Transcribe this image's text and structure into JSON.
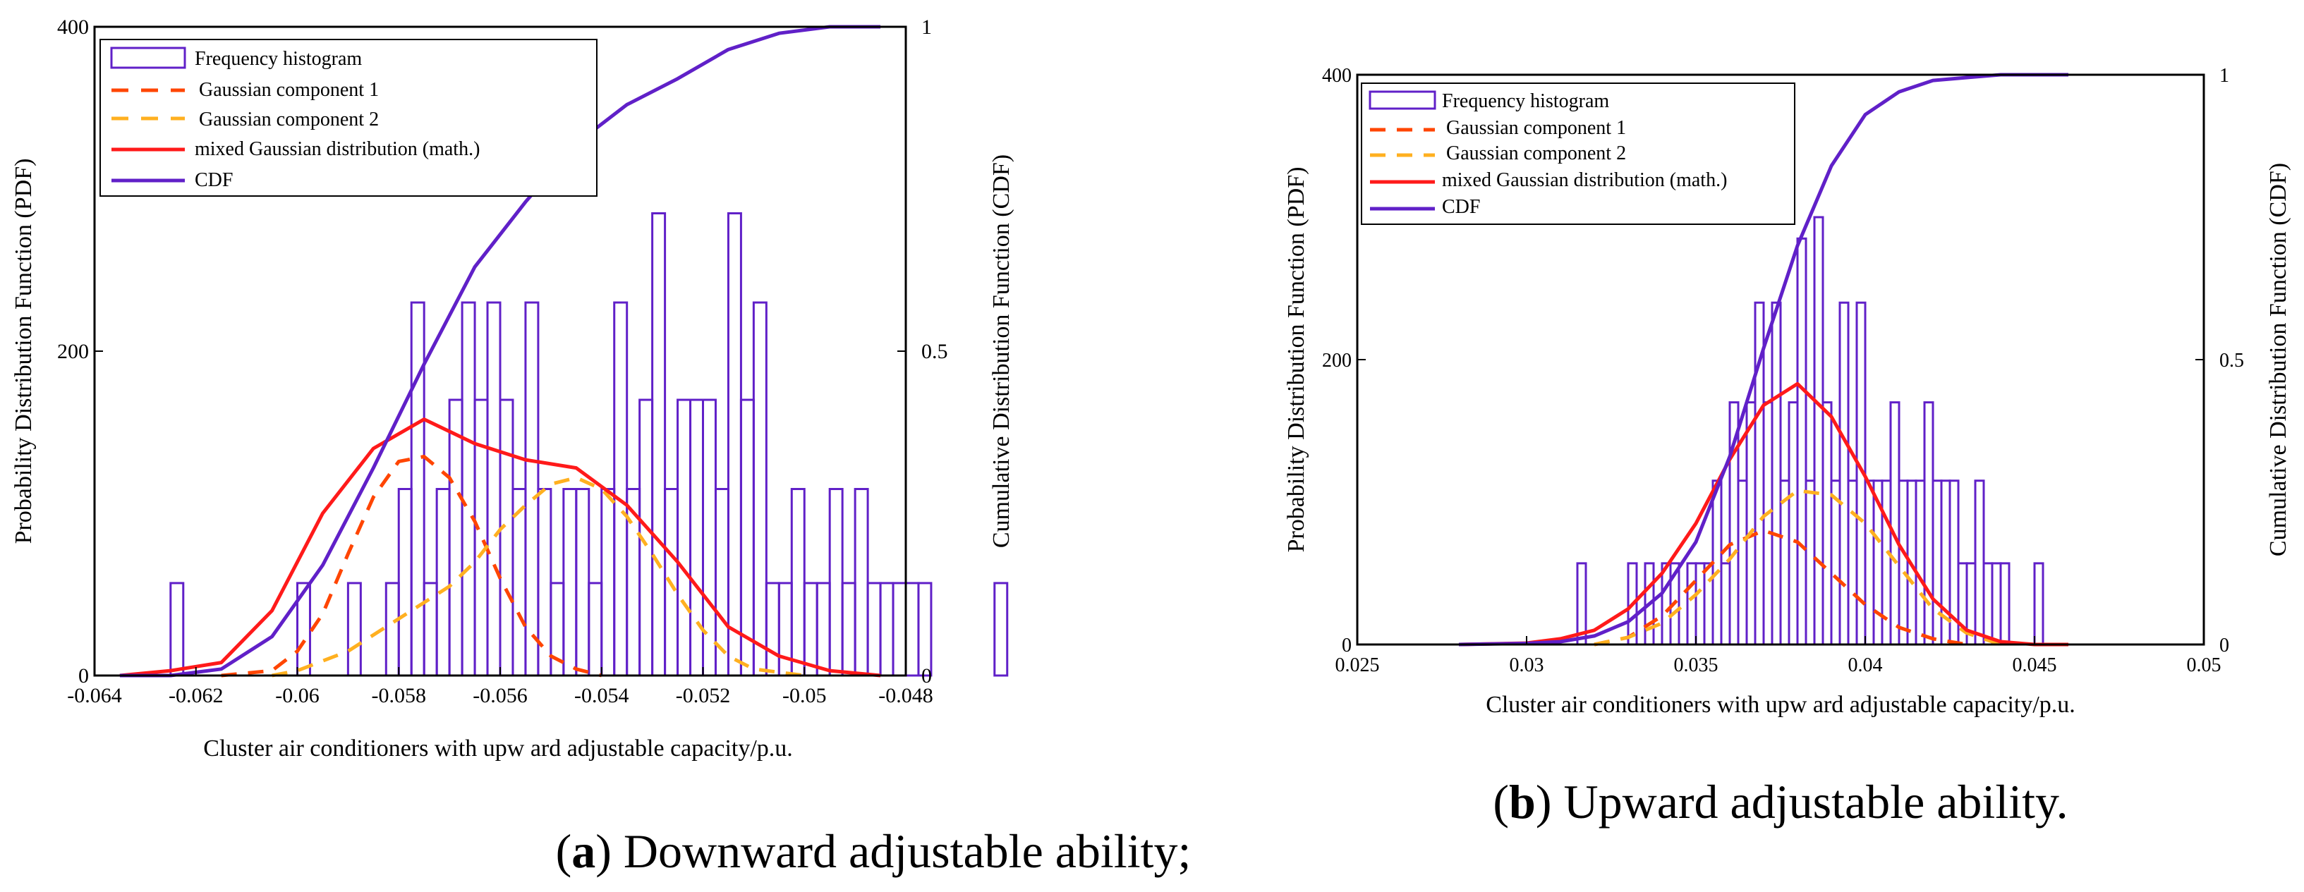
{
  "panels": [
    {
      "id": "a",
      "caption_letter": "a",
      "caption_text": ") Downward adjustable ability;",
      "chart_data": {
        "type": "histogram+line",
        "xlabel": "Cluster air conditioners with upw ard adjustable capacity/p.u.",
        "ylabel_left": "Probability Distribution Function (PDF)",
        "ylabel_right": "Cumulative Distribution Function (CDF)",
        "xlim": [
          -0.064,
          -0.048
        ],
        "ylim_left": [
          0,
          400
        ],
        "ylim_right": [
          0,
          1
        ],
        "xticks": [
          "-0.064",
          "-0.062",
          "-0.06",
          "-0.058",
          "-0.056",
          "-0.054",
          "-0.052",
          "-0.05",
          "-0.048"
        ],
        "xtick_values": [
          -0.064,
          -0.062,
          -0.06,
          -0.058,
          -0.056,
          -0.054,
          -0.052,
          -0.05,
          -0.048
        ],
        "yticks_left": [
          "0",
          "200",
          "400"
        ],
        "ytick_left_values": [
          0,
          200,
          400
        ],
        "yticks_right": [
          "0",
          "0.5",
          "1"
        ],
        "ytick_right_values": [
          0,
          0.5,
          1
        ],
        "legend": [
          "Frequency histogram",
          "Gaussian component 1",
          "Gaussian component 2",
          "mixed Gaussian distribution (math.)",
          "CDF"
        ],
        "histogram": {
          "bin_start": -0.0625,
          "bin_width": 0.00025,
          "counts": [
            57,
            0,
            0,
            0,
            0,
            0,
            0,
            0,
            0,
            0,
            57,
            0,
            0,
            0,
            57,
            0,
            0,
            57,
            115,
            230,
            57,
            115,
            170,
            230,
            170,
            230,
            170,
            115,
            230,
            115,
            57,
            115,
            115,
            57,
            115,
            230,
            115,
            170,
            285,
            115,
            170,
            170,
            170,
            115,
            285,
            170,
            230,
            57,
            57,
            115,
            57,
            57,
            115,
            57,
            115,
            57,
            57,
            57,
            57,
            57,
            0,
            0,
            0,
            0,
            0,
            57
          ]
        },
        "series": [
          {
            "name": "Gaussian component 1",
            "axis": "left",
            "color": "#ff4500",
            "dash": true,
            "x": [
              -0.0615,
              -0.0605,
              -0.06,
              -0.0595,
              -0.059,
              -0.0585,
              -0.058,
              -0.0575,
              -0.057,
              -0.0565,
              -0.056,
              -0.0555,
              -0.055,
              -0.0545,
              -0.054
            ],
            "y": [
              0,
              3,
              15,
              38,
              75,
              110,
              132,
              135,
              122,
              95,
              60,
              30,
              12,
              4,
              0
            ]
          },
          {
            "name": "Gaussian component 2",
            "axis": "left",
            "color": "#ffb020",
            "dash": true,
            "x": [
              -0.0605,
              -0.06,
              -0.059,
              -0.058,
              -0.057,
              -0.0565,
              -0.056,
              -0.0555,
              -0.055,
              -0.0545,
              -0.054,
              -0.0535,
              -0.053,
              -0.0525,
              -0.052,
              -0.0515,
              -0.051,
              -0.05
            ],
            "y": [
              0,
              3,
              15,
              35,
              55,
              70,
              90,
              105,
              118,
              122,
              115,
              98,
              75,
              50,
              28,
              12,
              4,
              0
            ]
          },
          {
            "name": "mixed Gaussian distribution (math.)",
            "axis": "left",
            "color": "#ff1a1a",
            "dash": false,
            "x": [
              -0.0635,
              -0.0625,
              -0.0615,
              -0.0605,
              -0.0595,
              -0.0585,
              -0.0575,
              -0.0565,
              -0.0555,
              -0.0545,
              -0.0535,
              -0.0525,
              -0.0515,
              -0.0505,
              -0.0495,
              -0.0485
            ],
            "y": [
              0,
              3,
              8,
              40,
              100,
              140,
              158,
              143,
              133,
              128,
              105,
              70,
              30,
              12,
              3,
              0
            ]
          },
          {
            "name": "CDF",
            "axis": "right",
            "color": "#6020c8",
            "dash": false,
            "x": [
              -0.0635,
              -0.0625,
              -0.0615,
              -0.0605,
              -0.0595,
              -0.0585,
              -0.0575,
              -0.0565,
              -0.0555,
              -0.0545,
              -0.0535,
              -0.0525,
              -0.0515,
              -0.0505,
              -0.0495,
              -0.0485
            ],
            "y": [
              0,
              0,
              0.01,
              0.06,
              0.17,
              0.32,
              0.48,
              0.63,
              0.73,
              0.82,
              0.88,
              0.92,
              0.965,
              0.99,
              1,
              1
            ]
          }
        ]
      }
    },
    {
      "id": "b",
      "caption_letter": "b",
      "caption_text": ") Upward adjustable ability.",
      "chart_data": {
        "type": "histogram+line",
        "xlabel": "Cluster air conditioners with upw ard adjustable capacity/p.u.",
        "ylabel_left": "Probability Distribution Function (PDF)",
        "ylabel_right": "Cumulative Distribution Function (CDF)",
        "xlim": [
          0.025,
          0.05
        ],
        "ylim_left": [
          0,
          400
        ],
        "ylim_right": [
          0,
          1
        ],
        "xticks": [
          "0.025",
          "0.03",
          "0.035",
          "0.04",
          "0.045",
          "0.05"
        ],
        "xtick_values": [
          0.025,
          0.03,
          0.035,
          0.04,
          0.045,
          0.05
        ],
        "yticks_left": [
          "0",
          "200",
          "400"
        ],
        "ytick_left_values": [
          0,
          200,
          400
        ],
        "yticks_right": [
          "0",
          "0.5",
          "1"
        ],
        "ytick_right_values": [
          0,
          0.5,
          1
        ],
        "legend": [
          "Frequency histogram",
          "Gaussian component 1",
          "Gaussian component 2",
          "mixed Gaussian distribution (math.)",
          "CDF"
        ],
        "histogram": {
          "bin_start": 0.0315,
          "bin_width": 0.00025,
          "counts": [
            57,
            0,
            0,
            0,
            0,
            0,
            57,
            0,
            57,
            0,
            57,
            57,
            0,
            57,
            57,
            57,
            115,
            57,
            170,
            115,
            170,
            240,
            170,
            240,
            115,
            170,
            285,
            115,
            300,
            170,
            115,
            240,
            115,
            240,
            115,
            115,
            115,
            170,
            115,
            115,
            115,
            170,
            115,
            115,
            115,
            57,
            57,
            115,
            57,
            57,
            57,
            0,
            0,
            0,
            57
          ]
        },
        "series": [
          {
            "name": "Gaussian component 1",
            "axis": "left",
            "color": "#ff4500",
            "dash": true,
            "x": [
              0.032,
              0.033,
              0.034,
              0.035,
              0.036,
              0.037,
              0.038,
              0.039,
              0.04,
              0.041,
              0.042,
              0.043
            ],
            "y": [
              0,
              5,
              20,
              45,
              70,
              80,
              72,
              50,
              28,
              12,
              4,
              0
            ]
          },
          {
            "name": "Gaussian component 2",
            "axis": "left",
            "color": "#ffb020",
            "dash": true,
            "x": [
              0.032,
              0.033,
              0.034,
              0.035,
              0.036,
              0.037,
              0.038,
              0.039,
              0.04,
              0.041,
              0.042,
              0.043,
              0.044
            ],
            "y": [
              0,
              5,
              15,
              35,
              60,
              90,
              108,
              105,
              85,
              55,
              25,
              8,
              0
            ]
          },
          {
            "name": "mixed Gaussian distribution (math.)",
            "axis": "left",
            "color": "#ff1a1a",
            "dash": false,
            "x": [
              0.028,
              0.03,
              0.031,
              0.032,
              0.033,
              0.034,
              0.035,
              0.036,
              0.037,
              0.038,
              0.039,
              0.04,
              0.041,
              0.042,
              0.043,
              0.044,
              0.045,
              0.046
            ],
            "y": [
              0,
              1,
              4,
              10,
              25,
              50,
              85,
              130,
              168,
              183,
              160,
              118,
              70,
              32,
              10,
              2,
              0,
              0
            ]
          },
          {
            "name": "CDF",
            "axis": "right",
            "color": "#6020c8",
            "dash": false,
            "x": [
              0.028,
              0.03,
              0.031,
              0.032,
              0.033,
              0.034,
              0.035,
              0.036,
              0.037,
              0.038,
              0.039,
              0.04,
              0.041,
              0.042,
              0.043,
              0.044,
              0.045,
              0.046
            ],
            "y": [
              0,
              0.002,
              0.005,
              0.015,
              0.04,
              0.09,
              0.18,
              0.33,
              0.52,
              0.7,
              0.84,
              0.93,
              0.97,
              0.99,
              0.995,
              1,
              1,
              1
            ]
          }
        ]
      }
    }
  ]
}
